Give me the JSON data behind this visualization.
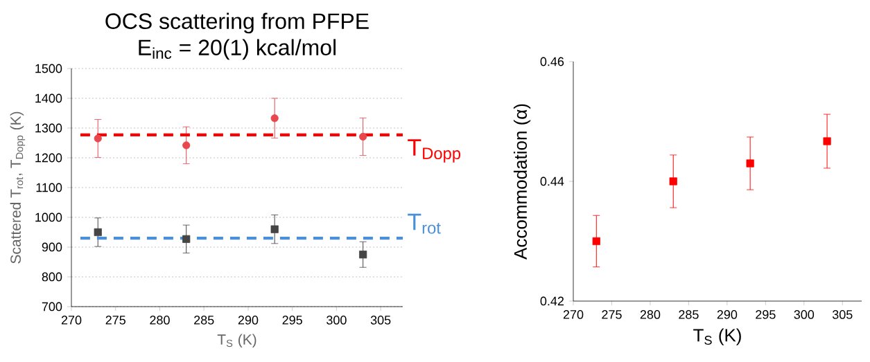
{
  "chart_data": [
    {
      "type": "scatter",
      "title": "OCS scattering from PFPE",
      "subtitle": "E$_{inc}$ = 20(1) kcal/mol",
      "xlabel": "T$_{S}$ (K)",
      "ylabel": "Scattered T$_{rot}$, T$_{Dopp}$ (K)",
      "xlim": [
        270,
        307.5
      ],
      "xticks": [
        270,
        275,
        280,
        285,
        290,
        295,
        300,
        305
      ],
      "ylim": [
        700,
        1500
      ],
      "yticks": [
        700,
        800,
        900,
        1000,
        1100,
        1200,
        1300,
        1400,
        1500
      ],
      "grid": "y",
      "series": [
        {
          "color": "#e8474e",
          "marker": "circle",
          "x": [
            273,
            283,
            293,
            303
          ],
          "values": [
            1265,
            1242,
            1333,
            1271
          ],
          "errors": [
            64,
            62,
            67,
            63
          ]
        },
        {
          "color": "#454545",
          "marker": "square",
          "x": [
            273,
            283,
            293,
            303
          ],
          "values": [
            950,
            927,
            960,
            875
          ],
          "errors": [
            48,
            47,
            48,
            43
          ]
        }
      ],
      "ref_lines": [
        {
          "axis": "y",
          "value": 1277,
          "label": "T$_{Dopp}$",
          "color": "#ff0000",
          "line_style": "dashed"
        },
        {
          "axis": "y",
          "value": 930,
          "label": "T$_{rot}$",
          "color": "#4a90d9",
          "line_style": "dashed"
        }
      ]
    },
    {
      "type": "scatter",
      "xlabel": "T$_{S}$ (K)",
      "ylabel": "Accommodation (α)",
      "xlim": [
        270,
        307.5
      ],
      "xticks": [
        270,
        275,
        280,
        285,
        290,
        295,
        300,
        305
      ],
      "ylim": [
        0.42,
        0.46
      ],
      "yticks": [
        0.42,
        0.44,
        0.46
      ],
      "grid": false,
      "series": [
        {
          "color": "#ff0000",
          "marker": "square",
          "x": [
            273,
            283,
            293,
            303
          ],
          "values": [
            0.43,
            0.44,
            0.443,
            0.4467
          ],
          "errors": [
            0.0043,
            0.0044,
            0.0044,
            0.0045
          ]
        }
      ]
    }
  ]
}
